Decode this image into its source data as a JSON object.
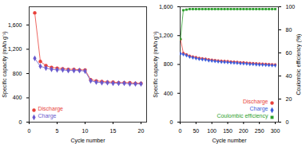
{
  "chart_data": [
    {
      "type": "line",
      "x_label": "Cycle number",
      "y_label": "Specific capacity (mAh g⁻¹)",
      "xlim": [
        0,
        21
      ],
      "xticks": [
        0,
        5,
        10,
        15,
        20
      ],
      "ylim": [
        0,
        1900
      ],
      "yticks": [
        0,
        400,
        800,
        1200,
        1600
      ],
      "legend": "bottom-left",
      "x": [
        1,
        2,
        3,
        4,
        5,
        6,
        7,
        8,
        9,
        10,
        11,
        12,
        13,
        14,
        15,
        16,
        17,
        18,
        19,
        20
      ],
      "series": [
        {
          "name": "Discharge",
          "color": "#e8413b",
          "marker": "circle",
          "values": [
            1800,
            1000,
            930,
            900,
            890,
            880,
            870,
            870,
            860,
            860,
            700,
            680,
            670,
            660,
            660,
            650,
            650,
            650,
            640,
            640
          ]
        },
        {
          "name": "Charge",
          "color": "#6a5acd",
          "marker": "diamond",
          "values": [
            1050,
            920,
            890,
            870,
            860,
            860,
            850,
            850,
            850,
            840,
            680,
            660,
            650,
            650,
            640,
            640,
            640,
            630,
            630,
            630
          ]
        }
      ]
    },
    {
      "type": "line",
      "x_label": "Cycle number",
      "y_label": "Specific capacity (mAh g⁻¹)",
      "y2_label": "Coulombic efficiency (%)",
      "xlim": [
        0,
        310
      ],
      "xticks": [
        0,
        50,
        100,
        150,
        200,
        250,
        300
      ],
      "ylim": [
        0,
        1600
      ],
      "yticks": [
        0,
        400,
        800,
        1200,
        1600
      ],
      "y2lim": [
        0,
        100
      ],
      "y2ticks": [
        0,
        20,
        40,
        60,
        80,
        100
      ],
      "legend": "bottom-right",
      "x": [
        1,
        10,
        20,
        30,
        40,
        50,
        60,
        70,
        80,
        90,
        100,
        110,
        120,
        130,
        140,
        150,
        160,
        170,
        180,
        190,
        200,
        210,
        220,
        230,
        240,
        250,
        260,
        270,
        280,
        290,
        300
      ],
      "series": [
        {
          "name": "Discharge",
          "color": "#e8413b",
          "marker": "circle",
          "values": [
            1150,
            960,
            940,
            920,
            910,
            900,
            890,
            885,
            880,
            870,
            865,
            860,
            855,
            850,
            848,
            845,
            840,
            838,
            835,
            830,
            828,
            825,
            820,
            818,
            815,
            812,
            810,
            808,
            805,
            802,
            800
          ]
        },
        {
          "name": "Charge",
          "color": "#3b5bdb",
          "marker": "diamond",
          "values": [
            950,
            940,
            925,
            905,
            895,
            885,
            875,
            870,
            865,
            855,
            850,
            845,
            840,
            835,
            833,
            830,
            825,
            823,
            820,
            815,
            813,
            810,
            805,
            803,
            800,
            797,
            795,
            793,
            790,
            787,
            785
          ]
        },
        {
          "name": "Coulombic efficiency",
          "color": "#2ca02c",
          "marker": "square",
          "axis": "y2",
          "values": [
            72,
            97,
            97.5,
            98,
            98,
            98,
            98,
            98,
            98,
            98,
            98,
            98,
            98,
            98,
            98,
            98,
            98,
            98,
            98,
            98,
            98,
            98,
            98,
            98,
            98,
            98,
            98,
            98,
            98,
            98,
            98
          ]
        }
      ]
    }
  ]
}
